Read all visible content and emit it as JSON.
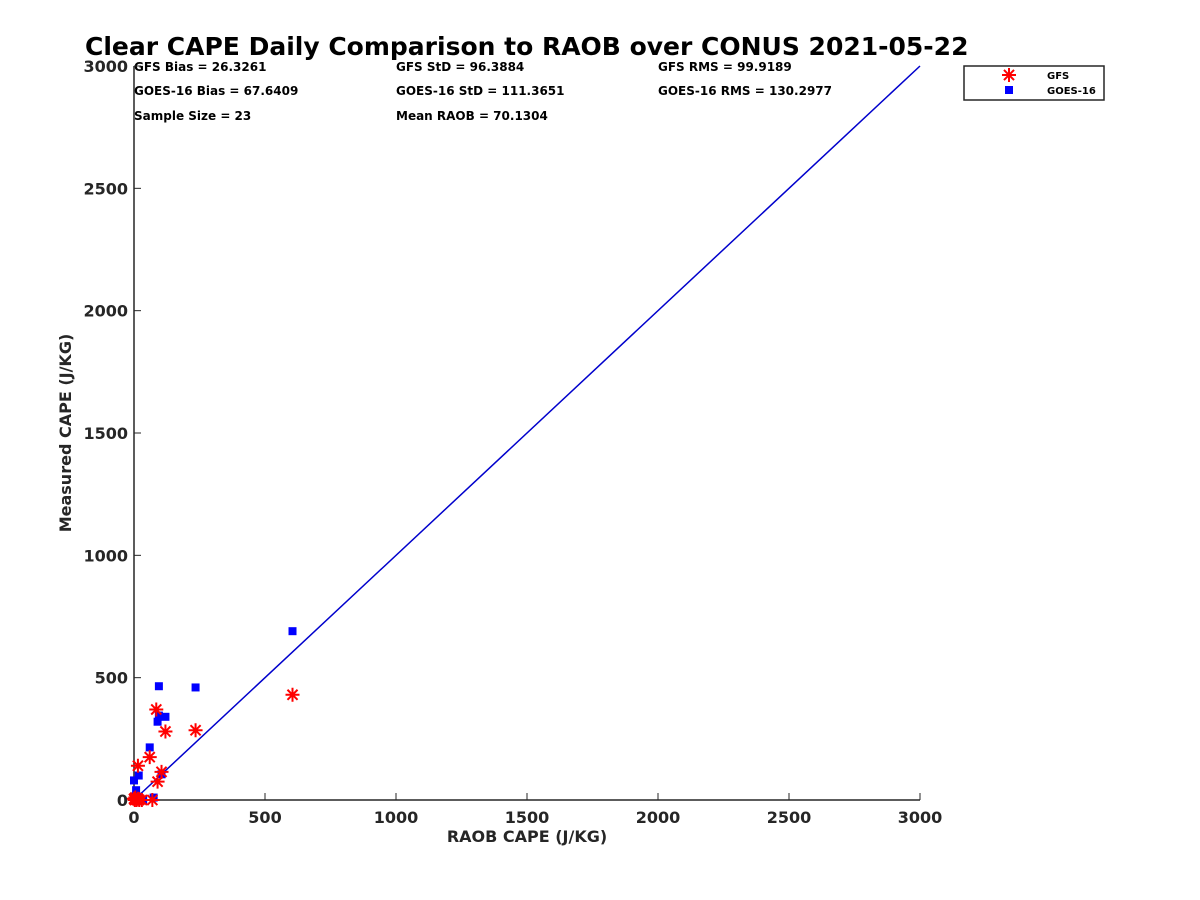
{
  "chart_data": {
    "type": "scatter",
    "title": "Clear CAPE Daily Comparison to RAOB over CONUS 2021-05-22",
    "xlabel": "RAOB CAPE (J/KG)",
    "ylabel": "Measured CAPE (J/KG)",
    "xlim": [
      0,
      3000
    ],
    "ylim": [
      0,
      3000
    ],
    "xticks": [
      "0",
      "500",
      "1000",
      "1500",
      "2000",
      "2500",
      "3000"
    ],
    "yticks": [
      "0",
      "500",
      "1000",
      "1500",
      "2000",
      "2500",
      "3000"
    ],
    "grid": false,
    "legend_position": "top-right",
    "stats": {
      "gfs_bias": "GFS Bias = 26.3261",
      "gfs_std": "GFS StD = 96.3884",
      "gfs_rms": "GFS RMS = 99.9189",
      "goes_bias": "GOES-16 Bias = 67.6409",
      "goes_std": "GOES-16 StD = 111.3651",
      "goes_rms": "GOES-16 RMS = 130.2977",
      "sample_size": "Sample Size = 23",
      "mean_raob": "Mean RAOB = 70.1304"
    },
    "reference_line": {
      "x": [
        0,
        3000
      ],
      "y": [
        0,
        3000
      ],
      "color": "#0000cc"
    },
    "series": [
      {
        "name": "GFS",
        "marker": "asterisk",
        "color": "#ff0000",
        "points": [
          [
            0,
            5
          ],
          [
            3,
            0
          ],
          [
            5,
            10
          ],
          [
            10,
            0
          ],
          [
            15,
            5
          ],
          [
            20,
            0
          ],
          [
            30,
            0
          ],
          [
            15,
            140
          ],
          [
            60,
            175
          ],
          [
            70,
            0
          ],
          [
            85,
            370
          ],
          [
            90,
            75
          ],
          [
            105,
            115
          ],
          [
            120,
            280
          ],
          [
            235,
            285
          ],
          [
            605,
            430
          ]
        ]
      },
      {
        "name": "GOES-16",
        "marker": "square",
        "color": "#0000ff",
        "points": [
          [
            0,
            80
          ],
          [
            5,
            5
          ],
          [
            8,
            40
          ],
          [
            10,
            0
          ],
          [
            15,
            10
          ],
          [
            18,
            100
          ],
          [
            25,
            5
          ],
          [
            35,
            0
          ],
          [
            60,
            215
          ],
          [
            75,
            10
          ],
          [
            90,
            320
          ],
          [
            95,
            345
          ],
          [
            95,
            465
          ],
          [
            105,
            105
          ],
          [
            120,
            340
          ],
          [
            235,
            460
          ],
          [
            605,
            690
          ]
        ]
      }
    ]
  }
}
